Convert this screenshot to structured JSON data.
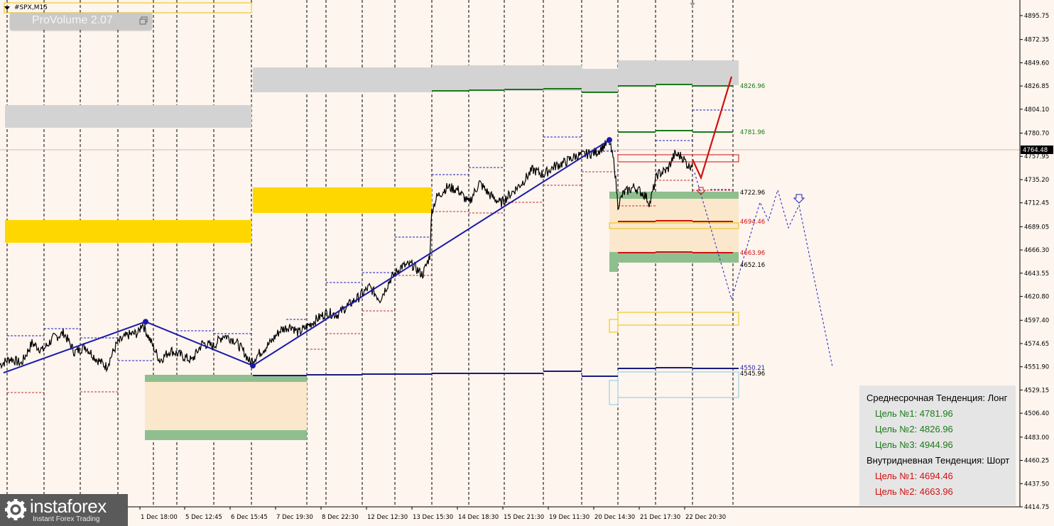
{
  "chart_title": "#SPX,M15",
  "indicator_badge": "ProVolume 2.07",
  "logo": {
    "name": "instaforex",
    "tagline": "Instant Forex Trading"
  },
  "colors": {
    "background": "#fdf5ee",
    "price_line": "#000000",
    "trend_line": "#1a1aa8",
    "target_up": "#1a7a1a",
    "target_down": "#d01010",
    "forecast": "#2020c0",
    "zone_yellow": "#ffd700",
    "zone_gray": "#d3d3d3",
    "zone_green": "#8fbf8f",
    "zone_cream": "#fbe7cb"
  },
  "info_panel": {
    "mid_term_trend": "Среднесрочная Тенденция: Лонг",
    "mid_targets": [
      "Цель №1: 4781.96",
      "Цель №2: 4826.96",
      "Цель №3: 4944.96"
    ],
    "intraday_trend": "Внутридневная Тенденция: Шорт",
    "intraday_targets": [
      "Цель №1: 4694.46",
      "Цель №2: 4663.96"
    ]
  },
  "chart_data": {
    "type": "line",
    "title": "#SPX,M15",
    "y_axis_ticks": [
      "4895.75",
      "4872.35",
      "4849.60",
      "4826.85",
      "4804.10",
      "4780.70",
      "4757.95",
      "4735.20",
      "4712.45",
      "4689.05",
      "4666.30",
      "4643.55",
      "4620.80",
      "4597.40",
      "4574.65",
      "4551.90",
      "4529.15",
      "4506.40",
      "4483.00",
      "4460.25",
      "4437.50",
      "4414.75"
    ],
    "ylim": [
      4414.75,
      4895.75
    ],
    "current_price": "4764.48",
    "x_axis_labels": [
      "1 Dec 18:00",
      "5 Dec 12:45",
      "6 Dec 15:45",
      "7 Dec 19:30",
      "8 Dec 22:30",
      "12 Dec 12:30",
      "13 Dec 15:30",
      "14 Dec 18:30",
      "15 Dec 21:30",
      "19 Dec 11:30",
      "20 Dec 14:30",
      "21 Dec 17:30",
      "22 Dec 20:30"
    ],
    "price_series": {
      "name": "#SPX,M15",
      "anchors": [
        [
          0,
          4554
        ],
        [
          15,
          4560
        ],
        [
          30,
          4555
        ],
        [
          45,
          4575
        ],
        [
          60,
          4568
        ],
        [
          75,
          4580
        ],
        [
          90,
          4585
        ],
        [
          105,
          4566
        ],
        [
          120,
          4572
        ],
        [
          135,
          4560
        ],
        [
          150,
          4552
        ],
        [
          165,
          4575
        ],
        [
          180,
          4583
        ],
        [
          195,
          4585
        ],
        [
          200,
          4595
        ],
        [
          210,
          4580
        ],
        [
          225,
          4558
        ],
        [
          240,
          4568
        ],
        [
          255,
          4563
        ],
        [
          270,
          4558
        ],
        [
          285,
          4575
        ],
        [
          300,
          4572
        ],
        [
          315,
          4583
        ],
        [
          330,
          4578
        ],
        [
          345,
          4565
        ],
        [
          352,
          4556
        ],
        [
          365,
          4565
        ],
        [
          380,
          4575
        ],
        [
          395,
          4588
        ],
        [
          410,
          4592
        ],
        [
          420,
          4585
        ],
        [
          430,
          4590
        ],
        [
          445,
          4598
        ],
        [
          460,
          4605
        ],
        [
          475,
          4603
        ],
        [
          490,
          4612
        ],
        [
          505,
          4620
        ],
        [
          520,
          4630
        ],
        [
          535,
          4618
        ],
        [
          550,
          4638
        ],
        [
          565,
          4650
        ],
        [
          580,
          4652
        ],
        [
          595,
          4642
        ],
        [
          605,
          4660
        ],
        [
          608,
          4705
        ],
        [
          615,
          4718
        ],
        [
          630,
          4728
        ],
        [
          645,
          4725
        ],
        [
          660,
          4712
        ],
        [
          675,
          4732
        ],
        [
          690,
          4720
        ],
        [
          705,
          4712
        ],
        [
          720,
          4722
        ],
        [
          735,
          4732
        ],
        [
          750,
          4745
        ],
        [
          765,
          4740
        ],
        [
          780,
          4748
        ],
        [
          795,
          4752
        ],
        [
          810,
          4758
        ],
        [
          825,
          4760
        ],
        [
          840,
          4762
        ],
        [
          850,
          4768
        ],
        [
          858,
          4772
        ],
        [
          865,
          4750
        ],
        [
          870,
          4710
        ],
        [
          878,
          4722
        ],
        [
          893,
          4728
        ],
        [
          908,
          4720
        ],
        [
          915,
          4712
        ],
        [
          925,
          4740
        ],
        [
          940,
          4745
        ],
        [
          950,
          4760
        ],
        [
          960,
          4758
        ],
        [
          970,
          4748
        ],
        [
          975,
          4752
        ]
      ]
    },
    "trend_lines": [
      {
        "points": [
          [
            5,
            4546
          ],
          [
            205,
            4596
          ],
          [
            356,
            4553
          ],
          [
            858,
            4774
          ]
        ],
        "pivots": [
          [
            205,
            4596
          ],
          [
            356,
            4553
          ],
          [
            858,
            4774
          ]
        ]
      }
    ],
    "levels": [
      {
        "value": 4826.96,
        "label": "4826.96",
        "color": "#1a7a1a"
      },
      {
        "value": 4781.96,
        "label": "4781.96",
        "color": "#1a7a1a"
      },
      {
        "value": 4722.96,
        "label": "4722.96",
        "color": "#000000"
      },
      {
        "value": 4694.46,
        "label": "4694.46",
        "color": "#d01010"
      },
      {
        "value": 4663.96,
        "label": "4663.96",
        "color": "#d01010"
      },
      {
        "value": 4652.16,
        "label": "4652.16",
        "color": "#000000"
      },
      {
        "value": 4550.21,
        "label": "4550.21",
        "color": "#1a1aa8"
      },
      {
        "value": 4545.96,
        "label": "4545.96",
        "color": "#000000"
      }
    ],
    "forecast_up": [
      [
        975,
        4755
      ],
      [
        987,
        4737
      ],
      [
        1030,
        4836
      ]
    ],
    "forecast_down_dotted": [
      [
        978,
        4742
      ],
      [
        1030,
        4618
      ],
      [
        1070,
        4713
      ],
      [
        1082,
        4695
      ],
      [
        1095,
        4725
      ],
      [
        1110,
        4688
      ],
      [
        1125,
        4710
      ],
      [
        1172,
        4552
      ]
    ],
    "grid": "vertical dashed",
    "legend": "none"
  }
}
